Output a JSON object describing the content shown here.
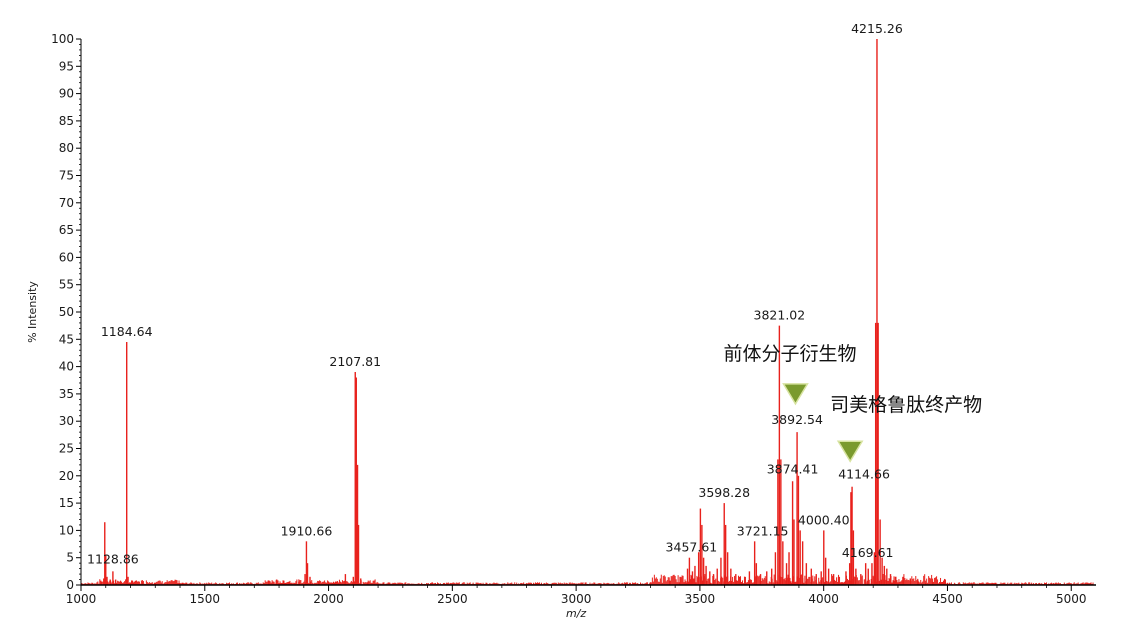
{
  "chart_data": {
    "type": "line",
    "xlabel": "m/z",
    "ylabel": "% Intensity",
    "xlim": [
      1000,
      5100
    ],
    "ylim": [
      0,
      100
    ],
    "x_ticks": [
      1000,
      1500,
      2000,
      2500,
      3000,
      3500,
      4000,
      4500,
      5000
    ],
    "y_ticks": [
      0,
      5,
      10,
      15,
      20,
      25,
      30,
      35,
      40,
      45,
      50,
      55,
      60,
      65,
      70,
      75,
      80,
      85,
      90,
      95,
      100
    ],
    "grid": false,
    "colors": {
      "spectrum": "#e8211c",
      "marker": "#7a9a2e",
      "marker_edge": "#d7e3a0",
      "axis": "#000000"
    },
    "peak_labels": [
      {
        "text": "4215.26",
        "x": 4215.26,
        "y": 100
      },
      {
        "text": "1184.64",
        "x": 1184.64,
        "y": 44.5
      },
      {
        "text": "2107.81",
        "x": 2107.81,
        "y": 39
      },
      {
        "text": "1128.86",
        "x": 1128.86,
        "y": 2.5
      },
      {
        "text": "1910.66",
        "x": 1910.66,
        "y": 8
      },
      {
        "text": "3821.02",
        "x": 3821.02,
        "y": 47.5
      },
      {
        "text": "3892.54",
        "x": 3892.54,
        "y": 28
      },
      {
        "text": "3874.41",
        "x": 3874.41,
        "y": 19
      },
      {
        "text": "4114.66",
        "x": 4114.66,
        "y": 18
      },
      {
        "text": "3598.28",
        "x": 3598.28,
        "y": 15
      },
      {
        "text": "3721.15",
        "x": 3721.15,
        "y": 8
      },
      {
        "text": "4000.40",
        "x": 4000.4,
        "y": 10
      },
      {
        "text": "3457.61",
        "x": 3457.61,
        "y": 5
      },
      {
        "text": "4169.61",
        "x": 4169.61,
        "y": 4
      }
    ],
    "annotations": [
      {
        "text": "前体分子衍生物",
        "marker_x": 3886,
        "marker_y": 35
      },
      {
        "text": "司美格鲁肽终产物",
        "marker_x": 4107,
        "marker_y": 24.5
      }
    ],
    "series": [
      {
        "peaks": [
          {
            "x": 1080,
            "y": 0.8
          },
          {
            "x": 1092,
            "y": 1.2
          },
          {
            "x": 1096,
            "y": 11.5
          },
          {
            "x": 1100,
            "y": 5.5
          },
          {
            "x": 1105,
            "y": 1.5
          },
          {
            "x": 1118,
            "y": 1.0
          },
          {
            "x": 1128.86,
            "y": 2.5
          },
          {
            "x": 1140,
            "y": 1.0
          },
          {
            "x": 1160,
            "y": 0.7
          },
          {
            "x": 1184.64,
            "y": 44.5
          },
          {
            "x": 1190,
            "y": 1.5
          },
          {
            "x": 1210,
            "y": 0.6
          },
          {
            "x": 1250,
            "y": 0.5
          },
          {
            "x": 1300,
            "y": 0.4
          },
          {
            "x": 1350,
            "y": 0.3
          },
          {
            "x": 1760,
            "y": 0.8
          },
          {
            "x": 1790,
            "y": 1.0
          },
          {
            "x": 1840,
            "y": 0.6
          },
          {
            "x": 1880,
            "y": 0.6
          },
          {
            "x": 1905,
            "y": 2.0
          },
          {
            "x": 1910.66,
            "y": 8
          },
          {
            "x": 1915,
            "y": 4.0
          },
          {
            "x": 1925,
            "y": 1.5
          },
          {
            "x": 1960,
            "y": 0.7
          },
          {
            "x": 2000,
            "y": 0.5
          },
          {
            "x": 2068,
            "y": 2.0
          },
          {
            "x": 2100,
            "y": 1.5
          },
          {
            "x": 2107.81,
            "y": 39
          },
          {
            "x": 2112,
            "y": 38
          },
          {
            "x": 2117,
            "y": 22
          },
          {
            "x": 2121,
            "y": 11
          },
          {
            "x": 2130,
            "y": 1.2
          },
          {
            "x": 2160,
            "y": 0.5
          },
          {
            "x": 2400,
            "y": 0.3
          },
          {
            "x": 2800,
            "y": 0.3
          },
          {
            "x": 3200,
            "y": 0.4
          },
          {
            "x": 3300,
            "y": 0.5
          },
          {
            "x": 3380,
            "y": 0.8
          },
          {
            "x": 3420,
            "y": 1.5
          },
          {
            "x": 3450,
            "y": 3.0
          },
          {
            "x": 3457.61,
            "y": 5
          },
          {
            "x": 3470,
            "y": 2.5
          },
          {
            "x": 3480,
            "y": 3.5
          },
          {
            "x": 3495,
            "y": 6.0
          },
          {
            "x": 3502,
            "y": 14
          },
          {
            "x": 3508,
            "y": 11
          },
          {
            "x": 3515,
            "y": 5
          },
          {
            "x": 3525,
            "y": 3.5
          },
          {
            "x": 3540,
            "y": 2.5
          },
          {
            "x": 3555,
            "y": 2.0
          },
          {
            "x": 3570,
            "y": 3.0
          },
          {
            "x": 3585,
            "y": 5.0
          },
          {
            "x": 3598.28,
            "y": 15
          },
          {
            "x": 3604,
            "y": 11
          },
          {
            "x": 3612,
            "y": 6
          },
          {
            "x": 3625,
            "y": 3
          },
          {
            "x": 3645,
            "y": 2
          },
          {
            "x": 3660,
            "y": 1.5
          },
          {
            "x": 3700,
            "y": 2.5
          },
          {
            "x": 3721.15,
            "y": 8
          },
          {
            "x": 3728,
            "y": 4
          },
          {
            "x": 3745,
            "y": 2
          },
          {
            "x": 3770,
            "y": 2.5
          },
          {
            "x": 3790,
            "y": 3
          },
          {
            "x": 3805,
            "y": 6
          },
          {
            "x": 3815,
            "y": 23
          },
          {
            "x": 3821.02,
            "y": 47.5
          },
          {
            "x": 3827,
            "y": 23
          },
          {
            "x": 3835,
            "y": 8
          },
          {
            "x": 3850,
            "y": 4
          },
          {
            "x": 3860,
            "y": 6
          },
          {
            "x": 3874.41,
            "y": 19
          },
          {
            "x": 3880,
            "y": 12
          },
          {
            "x": 3892.54,
            "y": 28
          },
          {
            "x": 3898,
            "y": 20
          },
          {
            "x": 3905,
            "y": 10
          },
          {
            "x": 3915,
            "y": 8
          },
          {
            "x": 3930,
            "y": 4
          },
          {
            "x": 3950,
            "y": 3
          },
          {
            "x": 3970,
            "y": 2
          },
          {
            "x": 3990,
            "y": 2.5
          },
          {
            "x": 4000.4,
            "y": 10
          },
          {
            "x": 4008,
            "y": 5
          },
          {
            "x": 4020,
            "y": 3
          },
          {
            "x": 4040,
            "y": 2
          },
          {
            "x": 4060,
            "y": 1.5
          },
          {
            "x": 4090,
            "y": 2.5
          },
          {
            "x": 4105,
            "y": 4
          },
          {
            "x": 4110,
            "y": 17
          },
          {
            "x": 4114.66,
            "y": 18
          },
          {
            "x": 4120,
            "y": 10
          },
          {
            "x": 4130,
            "y": 3
          },
          {
            "x": 4150,
            "y": 2
          },
          {
            "x": 4169.61,
            "y": 4
          },
          {
            "x": 4180,
            "y": 3
          },
          {
            "x": 4195,
            "y": 4
          },
          {
            "x": 4205,
            "y": 6
          },
          {
            "x": 4210,
            "y": 48
          },
          {
            "x": 4215.26,
            "y": 100
          },
          {
            "x": 4220,
            "y": 48
          },
          {
            "x": 4228,
            "y": 12
          },
          {
            "x": 4236,
            "y": 5
          },
          {
            "x": 4245,
            "y": 3.5
          },
          {
            "x": 4255,
            "y": 3
          },
          {
            "x": 4270,
            "y": 2
          },
          {
            "x": 4290,
            "y": 1.5
          },
          {
            "x": 4320,
            "y": 1.5
          },
          {
            "x": 4350,
            "y": 1.2
          },
          {
            "x": 4380,
            "y": 1
          },
          {
            "x": 4410,
            "y": 0.8
          },
          {
            "x": 4440,
            "y": 0.6
          },
          {
            "x": 4500,
            "y": 0.4
          },
          {
            "x": 4600,
            "y": 0.3
          },
          {
            "x": 4800,
            "y": 0.2
          }
        ]
      }
    ]
  }
}
